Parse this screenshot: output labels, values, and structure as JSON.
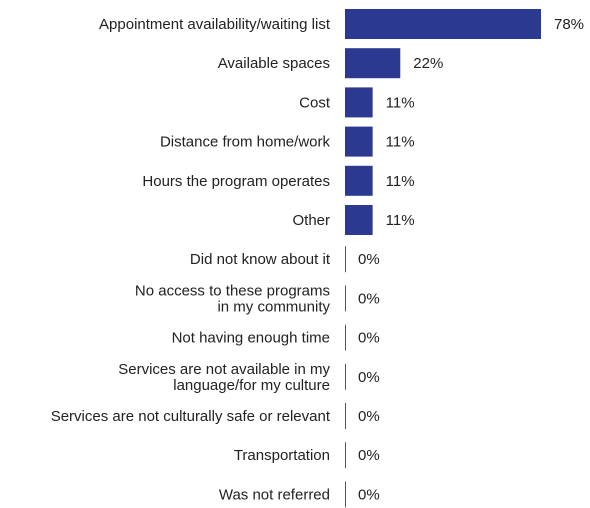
{
  "chart_data": {
    "type": "bar",
    "orientation": "horizontal",
    "categories": [
      "Appointment availability/waiting list",
      "Available spaces",
      "Cost",
      "Distance from home/work",
      "Hours the program operates",
      "Other",
      "Did not know about it",
      "No access to these programs in my community",
      "Not having enough time",
      "Services are not available in my language/for my culture",
      "Services are not culturally safe or relevant",
      "Transportation",
      "Was not referred"
    ],
    "category_lines": [
      [
        "Appointment availability/waiting list"
      ],
      [
        "Available spaces"
      ],
      [
        "Cost"
      ],
      [
        "Distance from home/work"
      ],
      [
        "Hours the program operates"
      ],
      [
        "Other"
      ],
      [
        "Did not know about it"
      ],
      [
        "No access to these programs",
        "in my community"
      ],
      [
        "Not having enough time"
      ],
      [
        "Services are not available in my",
        "language/for my culture"
      ],
      [
        "Services are not culturally safe or relevant"
      ],
      [
        "Transportation"
      ],
      [
        "Was not referred"
      ]
    ],
    "values": [
      78,
      22,
      11,
      11,
      11,
      11,
      0,
      0,
      0,
      0,
      0,
      0,
      0
    ],
    "value_labels": [
      "78%",
      "22%",
      "11%",
      "11%",
      "11%",
      "11%",
      "0%",
      "0%",
      "0%",
      "0%",
      "0%",
      "0%",
      "0%"
    ],
    "unit": "%",
    "xlim": [
      0,
      78
    ],
    "bar_color": "#2b3990",
    "axis_color": "#555555"
  }
}
